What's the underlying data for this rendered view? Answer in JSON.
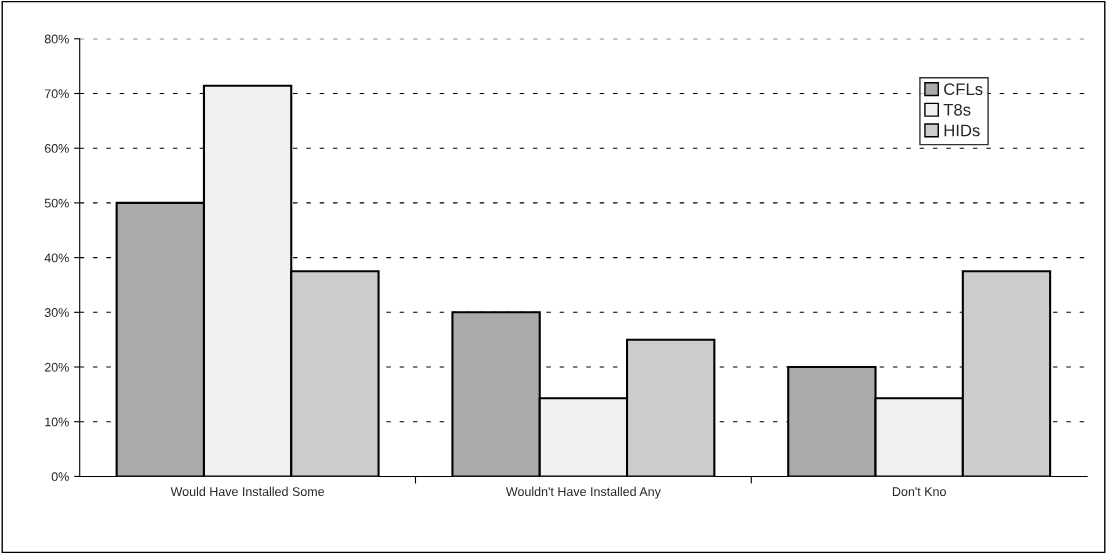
{
  "chart_data": {
    "type": "bar",
    "categories": [
      "Would Have Installed Some",
      "Wouldn't Have Installed Any",
      "Don't Kno"
    ],
    "series": [
      {
        "name": "CFLs",
        "color": "#aaaaaa",
        "values": [
          50,
          30,
          20
        ]
      },
      {
        "name": "T8s",
        "color": "#f0f0f0",
        "values": [
          71.4,
          14.3,
          14.3
        ]
      },
      {
        "name": "HIDs",
        "color": "#cccccc",
        "values": [
          37.5,
          25,
          37.5
        ]
      }
    ],
    "ylim": [
      0,
      80
    ],
    "yticks": [
      {
        "value": 0,
        "label": "0%"
      },
      {
        "value": 10,
        "label": "10%"
      },
      {
        "value": 20,
        "label": "20%"
      },
      {
        "value": 30,
        "label": "30%"
      },
      {
        "value": 40,
        "label": "40%"
      },
      {
        "value": 50,
        "label": "50%"
      },
      {
        "value": 60,
        "label": "60%"
      },
      {
        "value": 70,
        "label": "70%"
      },
      {
        "value": 80,
        "label": "80%"
      }
    ],
    "grid": "y",
    "legend": "top right"
  }
}
